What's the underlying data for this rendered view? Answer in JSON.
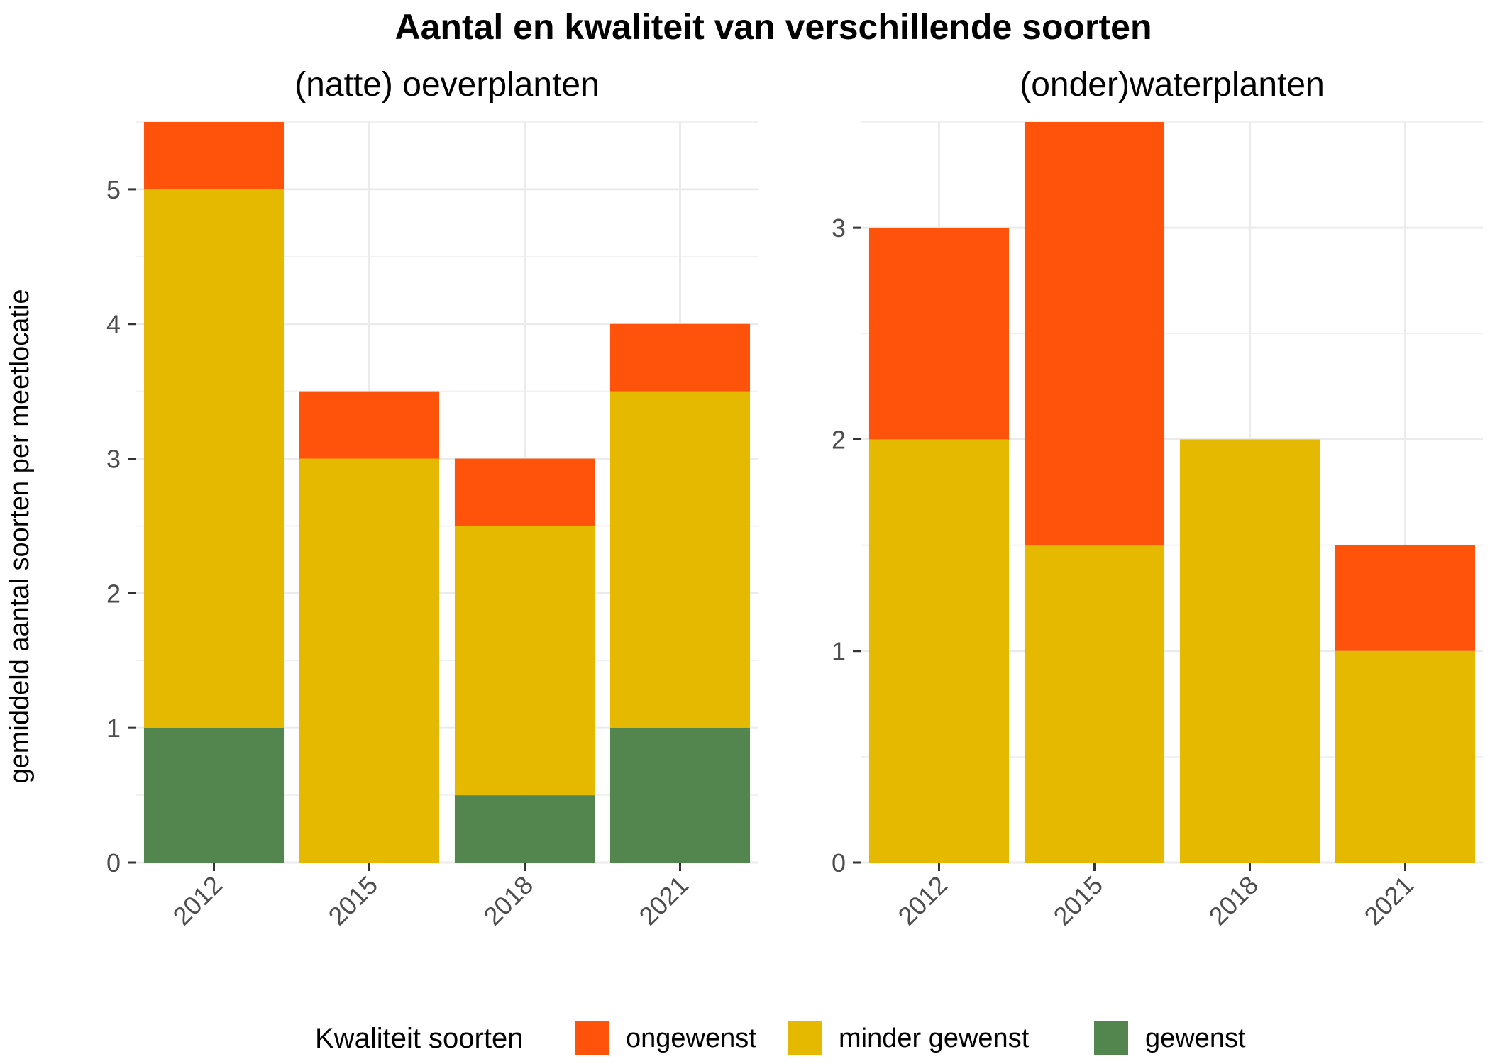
{
  "chart_data": {
    "type": "bar",
    "stacked": true,
    "title": "Aantal en kwaliteit van verschillende soorten",
    "ylabel": "gemiddeld aantal soorten per meetlocatie",
    "legend": {
      "title": "Kwaliteit soorten",
      "position": "bottom",
      "entries": [
        {
          "name": "ongewenst",
          "color": "#FF520A"
        },
        {
          "name": "minder gewenst",
          "color": "#E5B900"
        },
        {
          "name": "gewenst",
          "color": "#53864F"
        }
      ]
    },
    "grid": true,
    "panels": [
      {
        "title": "(natte) oeverplanten",
        "categories": [
          "2012",
          "2015",
          "2018",
          "2021"
        ],
        "ylim": [
          0,
          5.5
        ],
        "yticks": [
          0,
          1,
          2,
          3,
          4,
          5
        ],
        "series": [
          {
            "name": "gewenst",
            "values": [
              1,
              0,
              0.5,
              1
            ]
          },
          {
            "name": "minder gewenst",
            "values": [
              4,
              3,
              2,
              2.5
            ]
          },
          {
            "name": "ongewenst",
            "values": [
              0.5,
              0.5,
              0.5,
              0.5
            ]
          }
        ]
      },
      {
        "title": "(onder)waterplanten",
        "categories": [
          "2012",
          "2015",
          "2018",
          "2021"
        ],
        "ylim": [
          0,
          3.5
        ],
        "yticks": [
          0,
          1,
          2,
          3
        ],
        "series": [
          {
            "name": "gewenst",
            "values": [
              0,
              0,
              0,
              0
            ]
          },
          {
            "name": "minder gewenst",
            "values": [
              2,
              1.5,
              2,
              1
            ]
          },
          {
            "name": "ongewenst",
            "values": [
              1,
              2,
              0,
              0.5
            ]
          }
        ]
      }
    ]
  }
}
